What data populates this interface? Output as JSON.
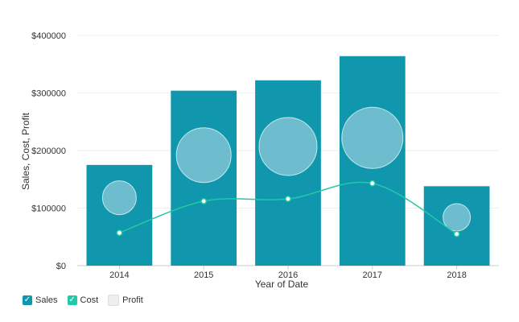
{
  "chart_data": {
    "type": "bar",
    "title": "",
    "xlabel": "Year of Date",
    "ylabel": "Sales, Cost, Profit",
    "categories": [
      "2014",
      "2015",
      "2016",
      "2017",
      "2018"
    ],
    "ylim": [
      0,
      400000
    ],
    "yticks": [
      0,
      100000,
      200000,
      300000,
      400000
    ],
    "ytick_labels": [
      "$0",
      "$100000",
      "$200000",
      "$300000",
      "$400000"
    ],
    "grid": true,
    "legend_position": "bottom-left",
    "series": [
      {
        "name": "Sales",
        "type": "bar",
        "color": "#1097ae",
        "values": [
          175000,
          304000,
          322000,
          364000,
          138000
        ]
      },
      {
        "name": "Cost",
        "type": "line",
        "color": "#22c9a6",
        "values": [
          57000,
          112000,
          116000,
          143000,
          55000
        ]
      },
      {
        "name": "Profit",
        "type": "bubble",
        "color": "#7ec3d4",
        "values": [
          118000,
          192000,
          207000,
          222000,
          84000
        ],
        "sizes": [
          21,
          34,
          36,
          38,
          17
        ]
      }
    ]
  },
  "legend": {
    "items": [
      {
        "label": "Sales",
        "checked": true,
        "color": "#1097ae",
        "check_glyph": "✓"
      },
      {
        "label": "Cost",
        "checked": true,
        "color": "#22c9a6",
        "check_glyph": "✓"
      },
      {
        "label": "Profit",
        "checked": false,
        "color": "#eeeeee",
        "check_glyph": ""
      }
    ]
  }
}
